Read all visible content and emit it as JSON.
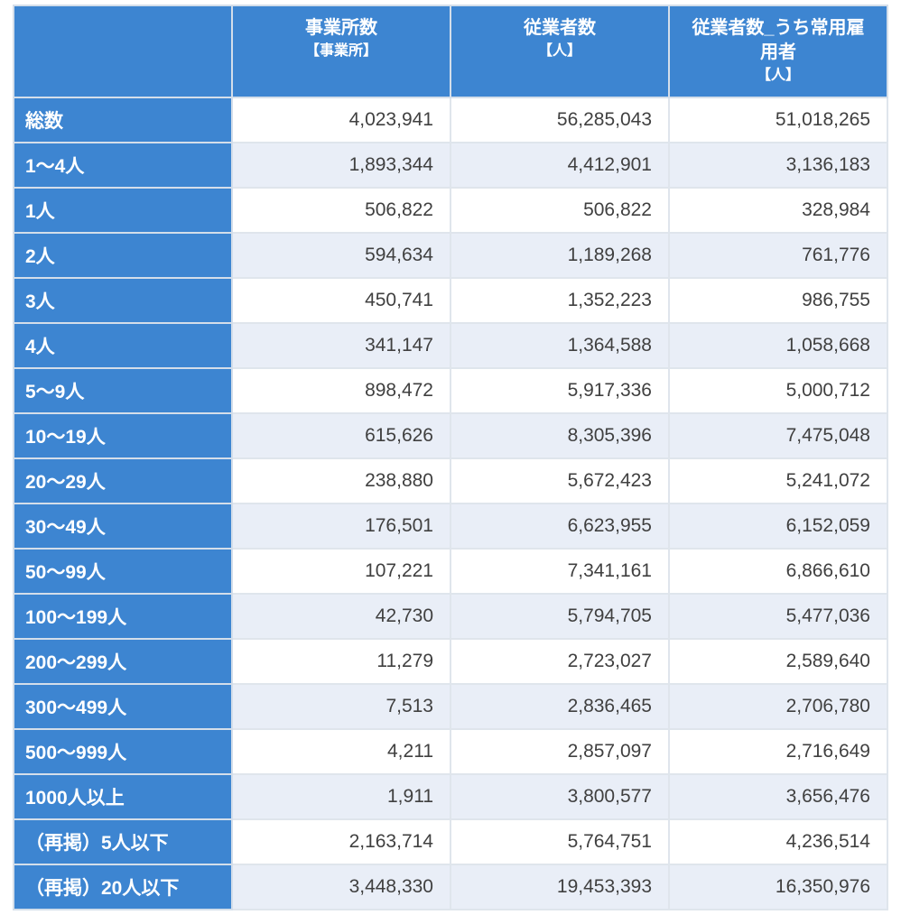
{
  "colors": {
    "header_blue": "#3d85d1",
    "alt_row_background": "#e9eef7",
    "grid_line": "#dfe5ec",
    "number_text": "#404040",
    "header_text": "#ffffff"
  },
  "table": {
    "columns": [
      {
        "label": "事業所数",
        "unit": "【事業所】"
      },
      {
        "label": "従業者数",
        "unit": "【人】"
      },
      {
        "label": "従業者数_うち常用雇\n用者",
        "unit": "【人】"
      }
    ],
    "rows": [
      {
        "label": "総数",
        "values": [
          "4,023,941",
          "56,285,043",
          "51,018,265"
        ]
      },
      {
        "label": "1〜4人",
        "values": [
          "1,893,344",
          "4,412,901",
          "3,136,183"
        ]
      },
      {
        "label": "1人",
        "values": [
          "506,822",
          "506,822",
          "328,984"
        ]
      },
      {
        "label": "2人",
        "values": [
          "594,634",
          "1,189,268",
          "761,776"
        ]
      },
      {
        "label": "3人",
        "values": [
          "450,741",
          "1,352,223",
          "986,755"
        ]
      },
      {
        "label": "4人",
        "values": [
          "341,147",
          "1,364,588",
          "1,058,668"
        ]
      },
      {
        "label": "5〜9人",
        "values": [
          "898,472",
          "5,917,336",
          "5,000,712"
        ]
      },
      {
        "label": "10〜19人",
        "values": [
          "615,626",
          "8,305,396",
          "7,475,048"
        ]
      },
      {
        "label": "20〜29人",
        "values": [
          "238,880",
          "5,672,423",
          "5,241,072"
        ]
      },
      {
        "label": "30〜49人",
        "values": [
          "176,501",
          "6,623,955",
          "6,152,059"
        ]
      },
      {
        "label": "50〜99人",
        "values": [
          "107,221",
          "7,341,161",
          "6,866,610"
        ]
      },
      {
        "label": "100〜199人",
        "values": [
          "42,730",
          "5,794,705",
          "5,477,036"
        ]
      },
      {
        "label": "200〜299人",
        "values": [
          "11,279",
          "2,723,027",
          "2,589,640"
        ]
      },
      {
        "label": "300〜499人",
        "values": [
          "7,513",
          "2,836,465",
          "2,706,780"
        ]
      },
      {
        "label": "500〜999人",
        "values": [
          "4,211",
          "2,857,097",
          "2,716,649"
        ]
      },
      {
        "label": "1000人以上",
        "values": [
          "1,911",
          "3,800,577",
          "3,656,476"
        ]
      },
      {
        "label": "（再掲）5人以下",
        "values": [
          "2,163,714",
          "5,764,751",
          "4,236,514"
        ]
      },
      {
        "label": "（再掲）20人以下",
        "values": [
          "3,448,330",
          "19,453,393",
          "16,350,976"
        ]
      }
    ]
  },
  "chart_data": {
    "type": "table",
    "title": "",
    "columns": [
      "事業所数【事業所】",
      "従業者数【人】",
      "従業者数_うち常用雇用者【人】"
    ],
    "row_labels": [
      "総数",
      "1〜4人",
      "1人",
      "2人",
      "3人",
      "4人",
      "5〜9人",
      "10〜19人",
      "20〜29人",
      "30〜49人",
      "50〜99人",
      "100〜199人",
      "200〜299人",
      "300〜499人",
      "500〜999人",
      "1000人以上",
      "（再掲）5人以下",
      "（再掲）20人以下"
    ],
    "rows": [
      [
        4023941,
        56285043,
        51018265
      ],
      [
        1893344,
        4412901,
        3136183
      ],
      [
        506822,
        506822,
        328984
      ],
      [
        594634,
        1189268,
        761776
      ],
      [
        450741,
        1352223,
        986755
      ],
      [
        341147,
        1364588,
        1058668
      ],
      [
        898472,
        5917336,
        5000712
      ],
      [
        615626,
        8305396,
        7475048
      ],
      [
        238880,
        5672423,
        5241072
      ],
      [
        176501,
        6623955,
        6152059
      ],
      [
        107221,
        7341161,
        6866610
      ],
      [
        42730,
        5794705,
        5477036
      ],
      [
        11279,
        2723027,
        2589640
      ],
      [
        7513,
        2836465,
        2706780
      ],
      [
        4211,
        2857097,
        2716649
      ],
      [
        1911,
        3800577,
        3656476
      ],
      [
        2163714,
        5764751,
        4236514
      ],
      [
        3448330,
        19453393,
        16350976
      ]
    ]
  }
}
